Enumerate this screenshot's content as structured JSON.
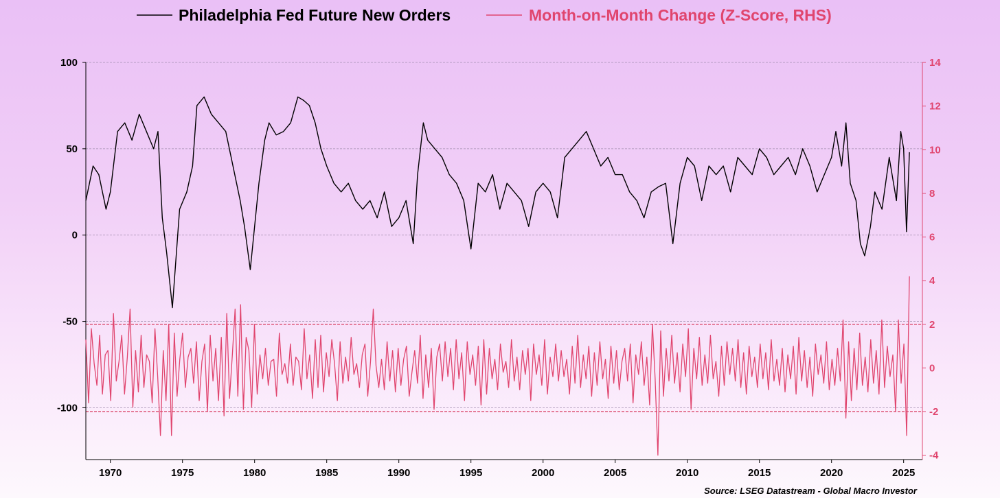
{
  "colors": {
    "primary_series": "#000000",
    "secondary_series": "#e0456e",
    "gridline": "#a38fb0",
    "threshold_line": "#d83a5c"
  },
  "chart_data": {
    "type": "line",
    "title": "",
    "legend_position": "top-center",
    "legend": [
      "Philadelphia Fed Future New Orders",
      "Month-on-Month Change (Z-Score, RHS)"
    ],
    "x": {
      "range": [
        1968.3,
        2026.3
      ],
      "ticks": [
        1970,
        1975,
        1980,
        1985,
        1990,
        1995,
        2000,
        2005,
        2010,
        2015,
        2020,
        2025
      ],
      "tick_labels": [
        "1970",
        "1975",
        "1980",
        "1985",
        "1990",
        "1995",
        "2000",
        "2005",
        "2010",
        "2015",
        "2020",
        "2025"
      ]
    },
    "y_left": {
      "range": [
        -130,
        100
      ],
      "ticks": [
        100,
        50,
        0,
        -50,
        -100
      ],
      "tick_labels": [
        "100",
        "50",
        "0",
        "-50",
        "-100"
      ],
      "gridlines": [
        100,
        50,
        0,
        -50,
        -100
      ]
    },
    "y_right": {
      "range": [
        -4.2,
        14
      ],
      "ticks": [
        14,
        12,
        10,
        8,
        6,
        4,
        2,
        0,
        -2,
        -4
      ],
      "tick_labels": [
        "14",
        "12",
        "10",
        "8",
        "6",
        "4",
        "2",
        "0",
        "-2",
        "-4"
      ],
      "thresholds": [
        2,
        -2
      ]
    },
    "series": [
      {
        "name": "Philadelphia Fed Future New Orders",
        "axis": "left",
        "x": [
          1968.3,
          1968.8,
          1969.2,
          1969.7,
          1970.0,
          1970.5,
          1971.0,
          1971.5,
          1972.0,
          1972.5,
          1973.0,
          1973.3,
          1973.6,
          1973.9,
          1974.3,
          1974.8,
          1975.3,
          1975.7,
          1976.0,
          1976.5,
          1977.0,
          1977.5,
          1978.0,
          1978.5,
          1979.0,
          1979.3,
          1979.7,
          1980.0,
          1980.3,
          1980.7,
          1981.0,
          1981.5,
          1982.0,
          1982.5,
          1983.0,
          1983.4,
          1983.8,
          1984.2,
          1984.6,
          1985.0,
          1985.5,
          1986.0,
          1986.5,
          1987.0,
          1987.5,
          1988.0,
          1988.5,
          1989.0,
          1989.5,
          1990.0,
          1990.5,
          1991.0,
          1991.3,
          1991.7,
          1992.0,
          1992.5,
          1993.0,
          1993.5,
          1994.0,
          1994.5,
          1995.0,
          1995.5,
          1996.0,
          1996.5,
          1997.0,
          1997.5,
          1998.0,
          1998.5,
          1999.0,
          1999.5,
          2000.0,
          2000.5,
          2001.0,
          2001.5,
          2002.0,
          2002.5,
          2003.0,
          2003.5,
          2004.0,
          2004.5,
          2005.0,
          2005.5,
          2006.0,
          2006.5,
          2007.0,
          2007.5,
          2008.0,
          2008.5,
          2009.0,
          2009.5,
          2010.0,
          2010.5,
          2011.0,
          2011.5,
          2012.0,
          2012.5,
          2013.0,
          2013.5,
          2014.0,
          2014.5,
          2015.0,
          2015.5,
          2016.0,
          2016.5,
          2017.0,
          2017.5,
          2018.0,
          2018.5,
          2019.0,
          2019.5,
          2020.0,
          2020.3,
          2020.7,
          2021.0,
          2021.3,
          2021.7,
          2022.0,
          2022.3,
          2022.7,
          2023.0,
          2023.5,
          2024.0,
          2024.5,
          2024.8,
          2025.0,
          2025.2,
          2025.4
        ],
        "y": [
          20,
          40,
          35,
          15,
          25,
          60,
          65,
          55,
          70,
          60,
          50,
          60,
          10,
          -10,
          -42,
          15,
          25,
          40,
          75,
          80,
          70,
          65,
          60,
          40,
          20,
          5,
          -20,
          5,
          30,
          55,
          65,
          58,
          60,
          65,
          80,
          78,
          75,
          65,
          50,
          40,
          30,
          25,
          30,
          20,
          15,
          20,
          10,
          25,
          5,
          10,
          20,
          -5,
          35,
          65,
          55,
          50,
          45,
          35,
          30,
          20,
          -8,
          30,
          25,
          35,
          15,
          30,
          25,
          20,
          5,
          25,
          30,
          25,
          10,
          45,
          50,
          55,
          60,
          50,
          40,
          45,
          35,
          35,
          25,
          20,
          10,
          25,
          28,
          30,
          -5,
          30,
          45,
          40,
          20,
          40,
          35,
          40,
          25,
          45,
          40,
          35,
          50,
          45,
          35,
          40,
          45,
          35,
          50,
          40,
          25,
          35,
          45,
          60,
          40,
          65,
          30,
          20,
          -5,
          -12,
          5,
          25,
          15,
          45,
          20,
          60,
          50,
          2,
          48
        ]
      },
      {
        "name": "Month-on-Month Change (Z-Score, RHS)",
        "axis": "right",
        "x_start": 1968.3,
        "x_end": 2025.4,
        "y": [
          1.3,
          -1.6,
          1.8,
          0.2,
          -0.8,
          1.5,
          -1.2,
          0.6,
          0.8,
          -1.5,
          2.5,
          -0.6,
          0.3,
          1.5,
          -1.2,
          0.5,
          2.7,
          -1.8,
          0.8,
          -1.1,
          1.5,
          -0.9,
          0.6,
          0.3,
          -1.6,
          1.8,
          -0.4,
          -3.1,
          0.8,
          -1.5,
          2.0,
          -3.1,
          1.6,
          -1.3,
          0.4,
          1.6,
          -0.9,
          0.5,
          0.9,
          -0.7,
          1.2,
          -1.5,
          0.3,
          1.1,
          -2.0,
          1.5,
          -0.6,
          0.9,
          -1.5,
          1.4,
          -2.2,
          2.5,
          -1.4,
          0.6,
          2.7,
          -1.3,
          2.9,
          -1.9,
          1.4,
          0.8,
          -1.8,
          2.0,
          -1.2,
          0.6,
          -0.5,
          0.9,
          -0.8,
          0.3,
          0.4,
          -1.3,
          1.6,
          -0.3,
          0.2,
          -0.7,
          1.1,
          -0.8,
          0.5,
          0.3,
          -1.0,
          1.8,
          -0.5,
          0.6,
          -1.4,
          1.3,
          -0.9,
          1.5,
          -1.1,
          0.7,
          -0.4,
          1.3,
          0.2,
          -1.5,
          1.2,
          -0.7,
          0.5,
          -0.6,
          1.4,
          -0.3,
          0.2,
          -0.9,
          0.6,
          1.1,
          -1.3,
          0.3,
          2.7,
          0.1,
          -0.9,
          0.4,
          -1.0,
          1.2,
          -0.6,
          0.8,
          -1.1,
          0.9,
          -0.8,
          0.4,
          1.0,
          -1.3,
          -0.2,
          0.8,
          -0.7,
          1.5,
          -1.4,
          0.6,
          -0.9,
          0.9,
          -1.9,
          0.5,
          1.1,
          -0.6,
          1.2,
          -0.4,
          0.9,
          -1.0,
          1.3,
          -0.5,
          0.7,
          -1.5,
          1.2,
          -0.3,
          0.6,
          -0.8,
          1.0,
          -1.7,
          1.3,
          -1.2,
          0.9,
          -0.5,
          0.4,
          -1.0,
          1.1,
          -0.2,
          0.3,
          -0.9,
          1.3,
          -0.6,
          0.5,
          -1.0,
          0.8,
          -0.3,
          0.9,
          -1.5,
          1.1,
          -0.3,
          0.6,
          -0.8,
          1.3,
          -1.2,
          0.5,
          -0.4,
          1.1,
          -0.6,
          0.8,
          -0.4,
          0.4,
          -1.2,
          1.0,
          -0.7,
          1.5,
          -0.9,
          0.6,
          -0.5,
          1.0,
          -1.3,
          0.7,
          -0.8,
          1.2,
          -0.5,
          0.4,
          -1.4,
          1.0,
          -0.7,
          0.8,
          -1.0,
          0.3,
          0.9,
          -0.6,
          1.1,
          -1.6,
          0.6,
          -0.3,
          1.2,
          -0.8,
          0.5,
          -1.7,
          2.0,
          -0.5,
          -4.0,
          1.7,
          -1.3,
          0.9,
          -0.6,
          1.5,
          -0.7,
          0.7,
          -1.1,
          1.1,
          -0.4,
          1.8,
          -1.9,
          0.9,
          -0.5,
          1.4,
          -0.8,
          0.6,
          -0.7,
          1.5,
          -0.5,
          0.3,
          -1.3,
          1.0,
          -0.8,
          1.2,
          -0.3,
          0.9,
          -0.6,
          1.3,
          -0.9,
          0.7,
          -1.2,
          1.0,
          -0.4,
          0.5,
          -0.9,
          1.1,
          -0.5,
          0.7,
          -1.0,
          1.3,
          -0.6,
          0.4,
          -0.8,
          0.9,
          -1.1,
          0.6,
          -0.5,
          1.0,
          -1.2,
          1.4,
          -0.6,
          0.8,
          -0.9,
          0.5,
          -1.3,
          1.1,
          -0.3,
          0.6,
          -0.7,
          1.2,
          -1.0,
          0.4,
          -0.8,
          0.9,
          -0.6,
          2.2,
          -2.3,
          1.2,
          -1.5,
          0.9,
          -1.0,
          1.6,
          -0.8,
          0.5,
          -1.1,
          1.3,
          -0.7,
          0.8,
          -1.2,
          2.2,
          -0.9,
          1.0,
          -0.4,
          0.6,
          -2.0,
          2.2,
          -0.7,
          1.1,
          -3.1,
          4.2
        ]
      }
    ],
    "source": "Source: LSEG Datastream - Global Macro Investor"
  }
}
